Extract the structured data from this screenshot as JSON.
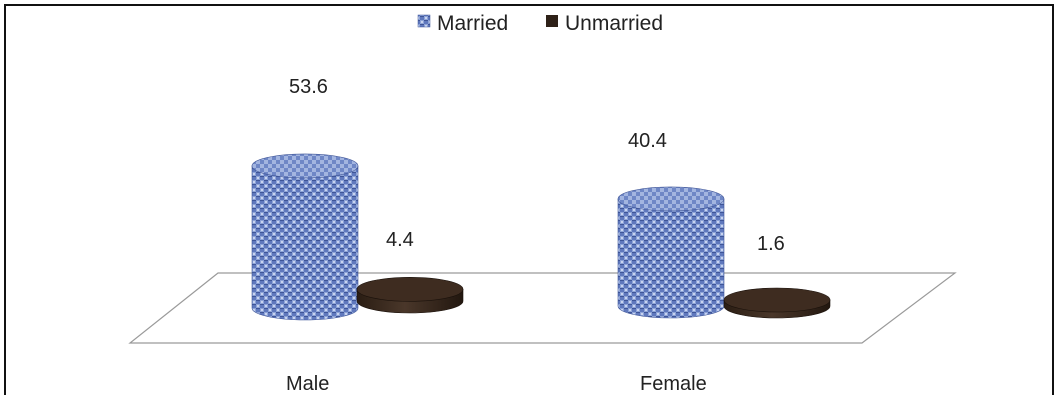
{
  "chart_data": {
    "type": "bar",
    "style": "3d-cylinder",
    "categories": [
      "Male",
      "Female"
    ],
    "series": [
      {
        "name": "Married",
        "values": [
          53.6,
          40.4
        ],
        "color": "#5b74b8",
        "pattern": "woven"
      },
      {
        "name": "Unmarried",
        "values": [
          4.4,
          1.6
        ],
        "color": "#3a2a1e"
      }
    ],
    "value_labels": {
      "Married": [
        "53.6",
        "40.4"
      ],
      "Unmarried": [
        "4.4",
        "1.6"
      ]
    },
    "legend_position": "top-center",
    "grid": false,
    "title": "",
    "xlabel": "",
    "ylabel": ""
  }
}
